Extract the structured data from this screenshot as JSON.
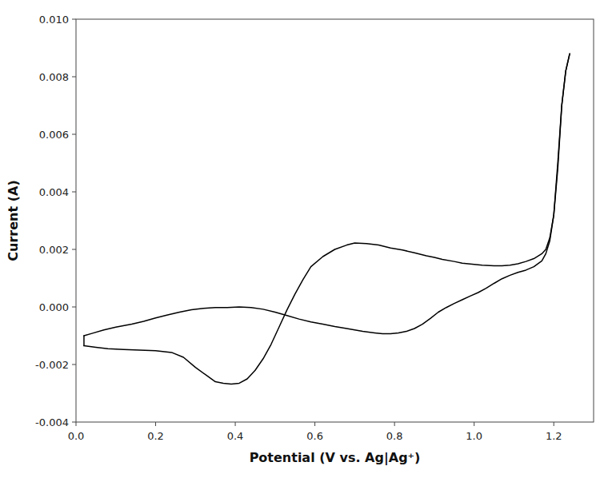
{
  "chart_data": {
    "type": "line",
    "xlabel": "Potential (V vs. Ag|Ag⁺)",
    "ylabel": "Current (A)",
    "xlim": [
      0.0,
      1.3
    ],
    "ylim": [
      -0.004,
      0.01
    ],
    "xticks": [
      {
        "value": 0.0,
        "label": "0.0"
      },
      0.2,
      0.4,
      0.6,
      0.8,
      {
        "value": 1.0,
        "label": "1.0"
      },
      1.2
    ],
    "yticks": [
      -0.004,
      -0.002,
      {
        "value": 0.0,
        "label": "0.000"
      },
      0.002,
      0.004,
      0.006,
      0.008,
      {
        "value": 0.01,
        "label": "0.010"
      }
    ],
    "grid": false,
    "series": [
      {
        "color": "#000000",
        "x": [
          0.02,
          0.05,
          0.08,
          0.12,
          0.16,
          0.2,
          0.24,
          0.27,
          0.3,
          0.33,
          0.35,
          0.37,
          0.39,
          0.41,
          0.43,
          0.45,
          0.47,
          0.49,
          0.51,
          0.53,
          0.55,
          0.57,
          0.59,
          0.62,
          0.65,
          0.68,
          0.7,
          0.73,
          0.76,
          0.79,
          0.82,
          0.85,
          0.88,
          0.9,
          0.92,
          0.95,
          0.97,
          1.0,
          1.02,
          1.05,
          1.07,
          1.09,
          1.11,
          1.13,
          1.15,
          1.17,
          1.18,
          1.19,
          1.2,
          1.21,
          1.22,
          1.23,
          1.24
        ],
        "values": [
          -0.00135,
          -0.0014,
          -0.00145,
          -0.00148,
          -0.0015,
          -0.00152,
          -0.00158,
          -0.00175,
          -0.0021,
          -0.0024,
          -0.0026,
          -0.00265,
          -0.00268,
          -0.00265,
          -0.0025,
          -0.0022,
          -0.0018,
          -0.0013,
          -0.0007,
          -0.0001,
          0.00045,
          0.00095,
          0.0014,
          0.00175,
          0.002,
          0.00215,
          0.00222,
          0.0022,
          0.00215,
          0.00205,
          0.00198,
          0.00188,
          0.00178,
          0.00172,
          0.00165,
          0.00158,
          0.00152,
          0.00148,
          0.00145,
          0.00143,
          0.00143,
          0.00145,
          0.0015,
          0.00158,
          0.00168,
          0.00185,
          0.002,
          0.0024,
          0.0032,
          0.005,
          0.007,
          0.0082,
          0.0088
        ]
      },
      {
        "color": "#000000",
        "x": [
          1.24,
          1.23,
          1.22,
          1.21,
          1.2,
          1.19,
          1.18,
          1.17,
          1.15,
          1.13,
          1.11,
          1.09,
          1.07,
          1.05,
          1.03,
          1.01,
          0.99,
          0.97,
          0.95,
          0.93,
          0.91,
          0.89,
          0.87,
          0.85,
          0.83,
          0.81,
          0.79,
          0.77,
          0.75,
          0.72,
          0.7,
          0.68,
          0.65,
          0.62,
          0.59,
          0.56,
          0.53,
          0.5,
          0.47,
          0.44,
          0.41,
          0.38,
          0.35,
          0.32,
          0.29,
          0.26,
          0.23,
          0.2,
          0.17,
          0.14,
          0.1,
          0.07,
          0.04,
          0.02
        ],
        "values": [
          0.0088,
          0.0082,
          0.007,
          0.0048,
          0.0032,
          0.0023,
          0.00185,
          0.0016,
          0.0014,
          0.00128,
          0.0012,
          0.0011,
          0.00098,
          0.00082,
          0.00065,
          0.0005,
          0.00038,
          0.00025,
          0.00012,
          -2e-05,
          -0.00018,
          -0.0004,
          -0.0006,
          -0.00075,
          -0.00085,
          -0.0009,
          -0.00093,
          -0.00093,
          -0.0009,
          -0.00085,
          -0.0008,
          -0.00075,
          -0.00068,
          -0.0006,
          -0.00052,
          -0.00042,
          -0.0003,
          -0.00018,
          -8e-05,
          -2e-05,
          0.0,
          -2e-05,
          -2e-05,
          -5e-05,
          -0.0001,
          -0.00018,
          -0.00028,
          -0.00038,
          -0.0005,
          -0.0006,
          -0.0007,
          -0.0008,
          -0.00092,
          -0.001
        ]
      },
      {
        "color": "#000000",
        "x": [
          0.02,
          0.02
        ],
        "values": [
          -0.00135,
          -0.001
        ]
      }
    ]
  }
}
